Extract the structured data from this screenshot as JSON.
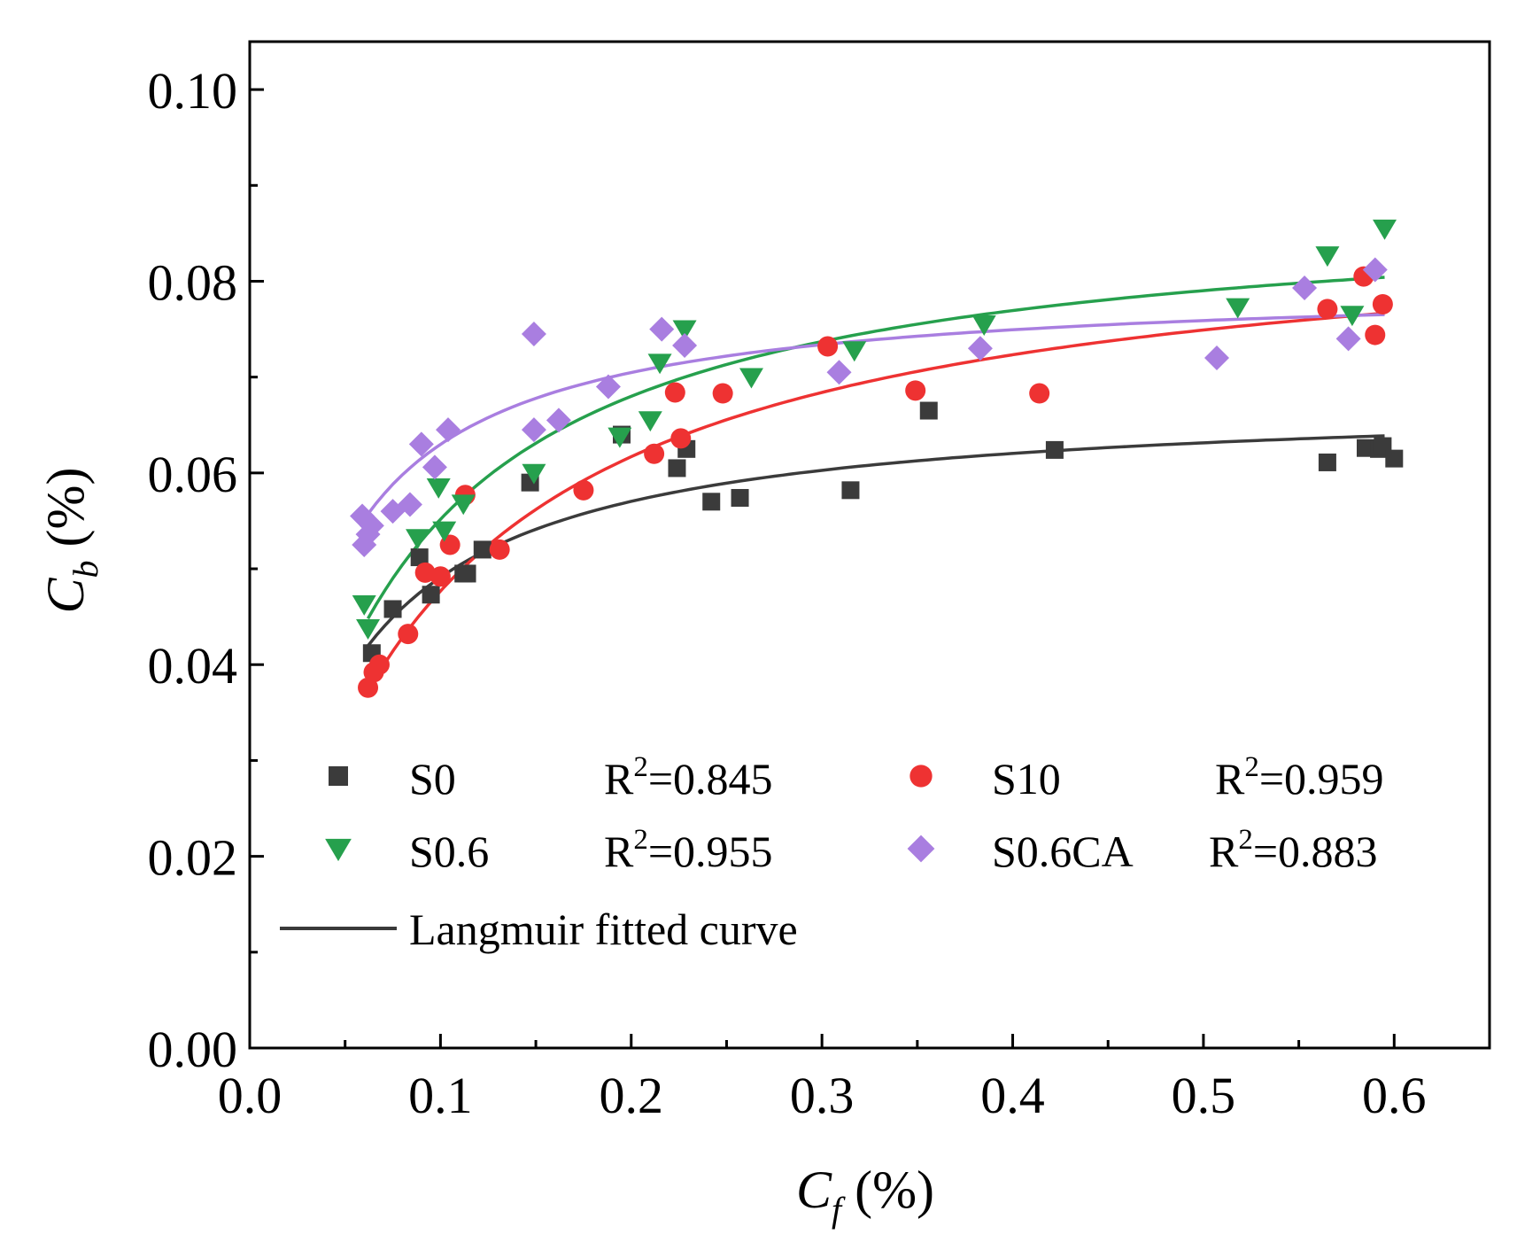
{
  "chart_data": {
    "type": "scatter",
    "title": "",
    "xlabel": {
      "symbol": "C",
      "subscript": "f",
      "unit": " (%)"
    },
    "ylabel": {
      "symbol": "C",
      "subscript": "b",
      "unit": " (%)"
    },
    "xlim": [
      0.0,
      0.65
    ],
    "ylim": [
      0.0,
      0.105
    ],
    "xticks": [
      0.0,
      0.1,
      0.2,
      0.3,
      0.4,
      0.5,
      0.6
    ],
    "xtick_labels": [
      "0.0",
      "0.1",
      "0.2",
      "0.3",
      "0.4",
      "0.5",
      "0.6"
    ],
    "xminor": [
      0.05,
      0.15,
      0.25,
      0.35,
      0.45,
      0.55,
      0.65
    ],
    "yticks": [
      0.0,
      0.02,
      0.04,
      0.06,
      0.08,
      0.1
    ],
    "ytick_labels": [
      "0.00",
      "0.02",
      "0.04",
      "0.06",
      "0.08",
      "0.10"
    ],
    "yminor": [
      0.01,
      0.03,
      0.05,
      0.07,
      0.09
    ],
    "legend": {
      "position": "lower-center",
      "fit_label": "Langmuir fitted curve",
      "fit_color": "#3a3a3a"
    },
    "series": [
      {
        "name": "S0",
        "r2_label": "R",
        "r2_sup": "2",
        "r2_value": "=0.845",
        "marker": "square",
        "color": "#3b3b3b",
        "x": [
          0.064,
          0.075,
          0.089,
          0.095,
          0.112,
          0.114,
          0.122,
          0.147,
          0.195,
          0.224,
          0.229,
          0.242,
          0.257,
          0.315,
          0.356,
          0.422,
          0.565,
          0.585,
          0.592,
          0.594,
          0.6
        ],
        "y": [
          0.0412,
          0.0458,
          0.0512,
          0.0473,
          0.0495,
          0.0495,
          0.052,
          0.059,
          0.064,
          0.0605,
          0.0625,
          0.057,
          0.0574,
          0.0582,
          0.0665,
          0.0624,
          0.0611,
          0.0626,
          0.0625,
          0.0628,
          0.0615
        ],
        "fit": {
          "qmax": 0.068,
          "k": 26.0,
          "xmin": 0.062,
          "xmax": 0.595
        }
      },
      {
        "name": "S10",
        "r2_label": "R",
        "r2_sup": "2",
        "r2_value": "=0.959",
        "marker": "circle",
        "color": "#ee3232",
        "x": [
          0.062,
          0.065,
          0.068,
          0.083,
          0.092,
          0.1,
          0.105,
          0.113,
          0.131,
          0.175,
          0.212,
          0.223,
          0.226,
          0.248,
          0.303,
          0.349,
          0.414,
          0.565,
          0.584,
          0.59,
          0.594
        ],
        "y": [
          0.0376,
          0.0392,
          0.04,
          0.0432,
          0.0496,
          0.0492,
          0.0525,
          0.0577,
          0.052,
          0.0582,
          0.062,
          0.0684,
          0.0636,
          0.0683,
          0.0732,
          0.0686,
          0.0683,
          0.0771,
          0.0805,
          0.0744,
          0.0776
        ],
        "fit": {
          "qmax": 0.0874,
          "k": 12.0,
          "xmin": 0.062,
          "xmax": 0.595
        }
      },
      {
        "name": "S0.6",
        "r2_label": "R",
        "r2_sup": "2",
        "r2_value": "=0.955",
        "marker": "triangle-down",
        "color": "#26a04d",
        "x": [
          0.06,
          0.062,
          0.088,
          0.099,
          0.102,
          0.112,
          0.149,
          0.194,
          0.21,
          0.215,
          0.228,
          0.263,
          0.317,
          0.385,
          0.518,
          0.565,
          0.578,
          0.595
        ],
        "y": [
          0.0463,
          0.0438,
          0.0532,
          0.0585,
          0.054,
          0.0568,
          0.06,
          0.0638,
          0.0655,
          0.0715,
          0.075,
          0.07,
          0.0728,
          0.0755,
          0.0773,
          0.0827,
          0.0765,
          0.0855
        ],
        "fit": {
          "qmax": 0.0886,
          "k": 16.5,
          "xmin": 0.062,
          "xmax": 0.595
        }
      },
      {
        "name": "S0.6CA",
        "r2_label": "R",
        "r2_sup": "2",
        "r2_value": "=0.883",
        "marker": "diamond",
        "color": "#a97ee0",
        "x": [
          0.059,
          0.06,
          0.062,
          0.064,
          0.075,
          0.084,
          0.09,
          0.097,
          0.104,
          0.149,
          0.149,
          0.162,
          0.188,
          0.216,
          0.228,
          0.309,
          0.383,
          0.507,
          0.553,
          0.576,
          0.59
        ],
        "y": [
          0.0555,
          0.0525,
          0.0536,
          0.0545,
          0.056,
          0.0567,
          0.063,
          0.0606,
          0.0645,
          0.0745,
          0.0645,
          0.0655,
          0.069,
          0.075,
          0.0733,
          0.0705,
          0.073,
          0.072,
          0.0793,
          0.074,
          0.0812
        ],
        "fit": {
          "qmax": 0.08,
          "k": 37.0,
          "xmin": 0.062,
          "xmax": 0.595
        }
      }
    ]
  }
}
